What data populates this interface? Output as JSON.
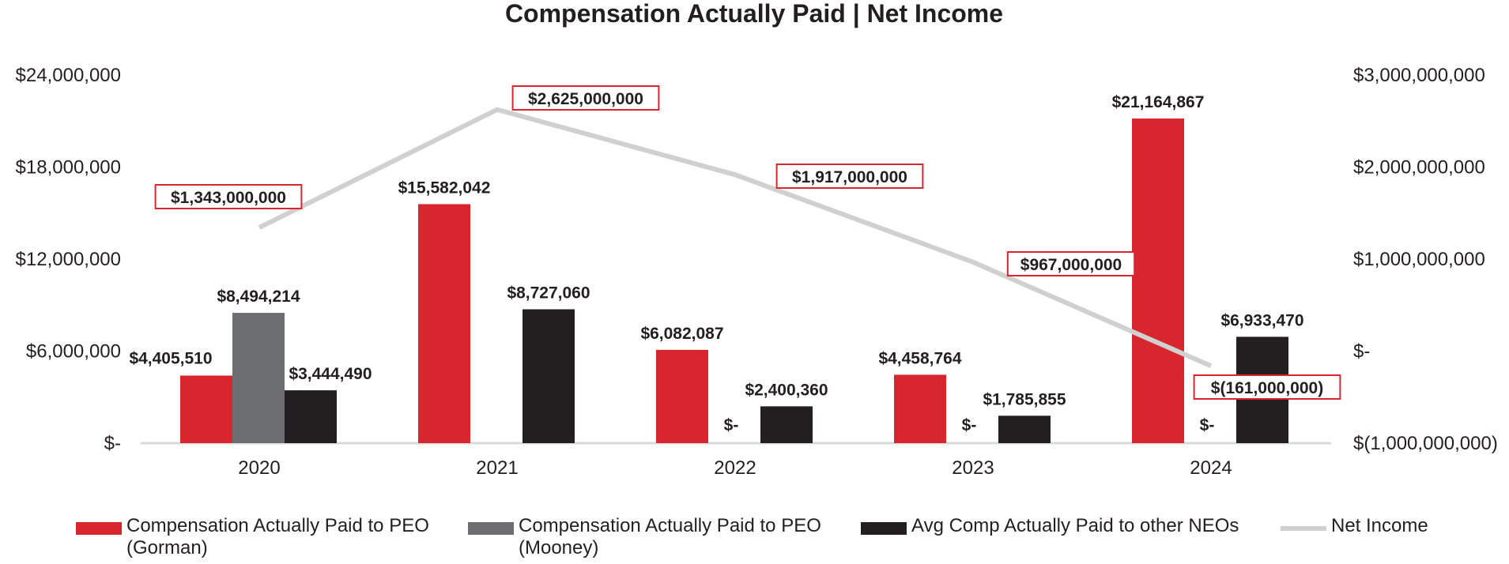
{
  "chart_data": {
    "type": "bar",
    "title": "Compensation Actually Paid | Net Income",
    "categories": [
      "2020",
      "2021",
      "2022",
      "2023",
      "2024"
    ],
    "left_axis": {
      "range": [
        0,
        24000000
      ],
      "ticks": [
        0,
        6000000,
        12000000,
        18000000,
        24000000
      ],
      "tick_labels": [
        "$-",
        "$6,000,000",
        "$12,000,000",
        "$18,000,000",
        "$24,000,000"
      ]
    },
    "right_axis": {
      "range": [
        -1000000000,
        3000000000
      ],
      "ticks": [
        -1000000000,
        0,
        1000000000,
        2000000000,
        3000000000
      ],
      "tick_labels": [
        "$(1,000,000,000)",
        "$-",
        "$1,000,000,000",
        "$2,000,000,000",
        "$3,000,000,000"
      ]
    },
    "series": [
      {
        "name": "Compensation Actually Paid to PEO (Gorman)",
        "legend_lines": [
          "Compensation Actually Paid to PEO",
          "(Gorman)"
        ],
        "kind": "bar",
        "color": "#d7262e",
        "values": [
          4405510,
          15582042,
          6082087,
          4458764,
          21164867
        ],
        "labels": [
          "$4,405,510",
          "$15,582,042",
          "$6,082,087",
          "$4,458,764",
          "$21,164,867"
        ]
      },
      {
        "name": "Compensation Actually Paid to PEO (Mooney)",
        "legend_lines": [
          "Compensation Actually Paid to PEO",
          "(Mooney)"
        ],
        "kind": "bar",
        "color": "#6d6e71",
        "values": [
          8494214,
          0,
          0,
          0,
          0
        ],
        "labels": [
          "$8,494,214",
          "",
          "$-",
          "$-",
          "$-"
        ]
      },
      {
        "name": "Avg Comp Actually Paid to other NEOs",
        "legend_lines": [
          "Avg Comp Actually Paid to other NEOs"
        ],
        "kind": "bar",
        "color": "#231f20",
        "values": [
          3444490,
          8727060,
          2400360,
          1785855,
          6933470
        ],
        "labels": [
          "$3,444,490",
          "$8,727,060",
          "$2,400,360",
          "$1,785,855",
          "$6,933,470"
        ]
      },
      {
        "name": "Net Income",
        "legend_lines": [
          "Net Income"
        ],
        "kind": "line",
        "axis": "right",
        "color": "#d0d0d0",
        "values": [
          1343000000,
          2625000000,
          1917000000,
          967000000,
          -161000000
        ],
        "labels": [
          "$1,343,000,000",
          "$2,625,000,000",
          "$1,917,000,000",
          "$967,000,000",
          "$(161,000,000)"
        ]
      }
    ],
    "label_box_color": "#d7262e"
  }
}
